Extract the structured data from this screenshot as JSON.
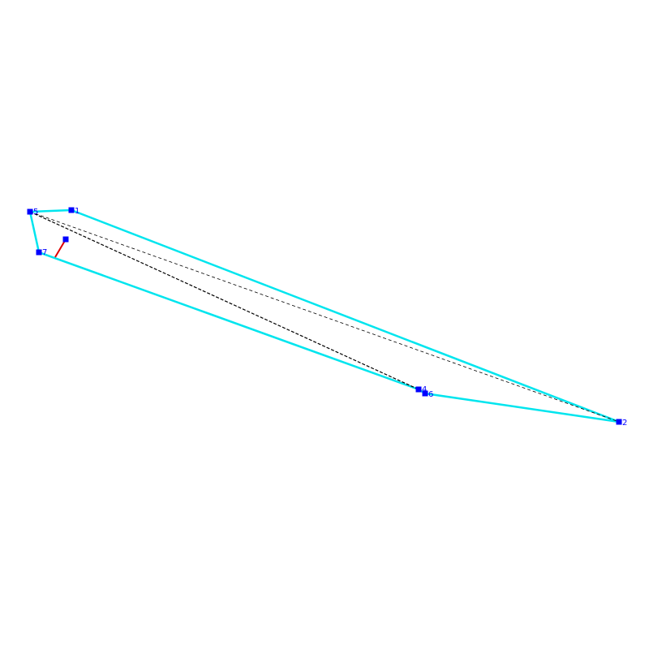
{
  "nodes": [
    {
      "label": "1"
    },
    {
      "label": "2"
    },
    {
      "label": "4"
    },
    {
      "label": "5"
    },
    {
      "label": "6"
    },
    {
      "label": "7"
    }
  ]
}
